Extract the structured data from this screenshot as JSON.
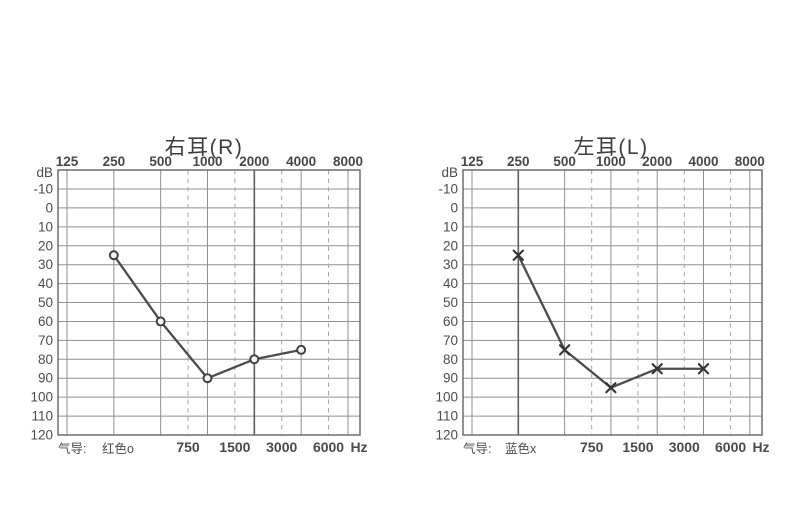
{
  "page": {
    "background": "#ffffff"
  },
  "colors": {
    "grid": "#8f8f8f",
    "grid_dashed": "#a6a6a6",
    "frame": "#6d6d6d",
    "data_line": "#4c4c4c",
    "text": "#4c4c4c"
  },
  "chart_data": [
    {
      "type": "line",
      "title": "右耳(R)",
      "y_axis_label": "dB",
      "x_axis_unit": "Hz",
      "x_scale": "log",
      "y_axis_inverted": true,
      "ylim": [
        -10,
        120
      ],
      "x_ticks_top": [
        125,
        250,
        500,
        1000,
        2000,
        4000,
        8000
      ],
      "x_ticks_bottom_dashed": [
        750,
        1500,
        3000,
        6000
      ],
      "y_ticks": [
        -10,
        0,
        10,
        20,
        30,
        40,
        50,
        60,
        70,
        80,
        90,
        100,
        110,
        120
      ],
      "legend": {
        "label": "气导:",
        "value": "红色o"
      },
      "series": [
        {
          "name": "气导 (air conduction)",
          "marker": "o",
          "marker_color_label": "红色",
          "x": [
            250,
            500,
            1000,
            2000,
            4000
          ],
          "y_db": [
            25,
            60,
            90,
            80,
            75
          ]
        }
      ]
    },
    {
      "type": "line",
      "title": "左耳(L)",
      "y_axis_label": "dB",
      "x_axis_unit": "Hz",
      "x_scale": "log",
      "y_axis_inverted": true,
      "ylim": [
        -10,
        120
      ],
      "x_ticks_top": [
        125,
        250,
        500,
        1000,
        2000,
        4000,
        8000
      ],
      "x_ticks_bottom_dashed": [
        750,
        1500,
        3000,
        6000
      ],
      "y_ticks": [
        -10,
        0,
        10,
        20,
        30,
        40,
        50,
        60,
        70,
        80,
        90,
        100,
        110,
        120
      ],
      "legend": {
        "label": "气导:",
        "value": "蓝色x"
      },
      "series": [
        {
          "name": "气导 (air conduction)",
          "marker": "x",
          "marker_color_label": "蓝色",
          "x": [
            250,
            500,
            1000,
            2000,
            4000
          ],
          "y_db": [
            25,
            75,
            95,
            85,
            85
          ]
        }
      ]
    }
  ]
}
